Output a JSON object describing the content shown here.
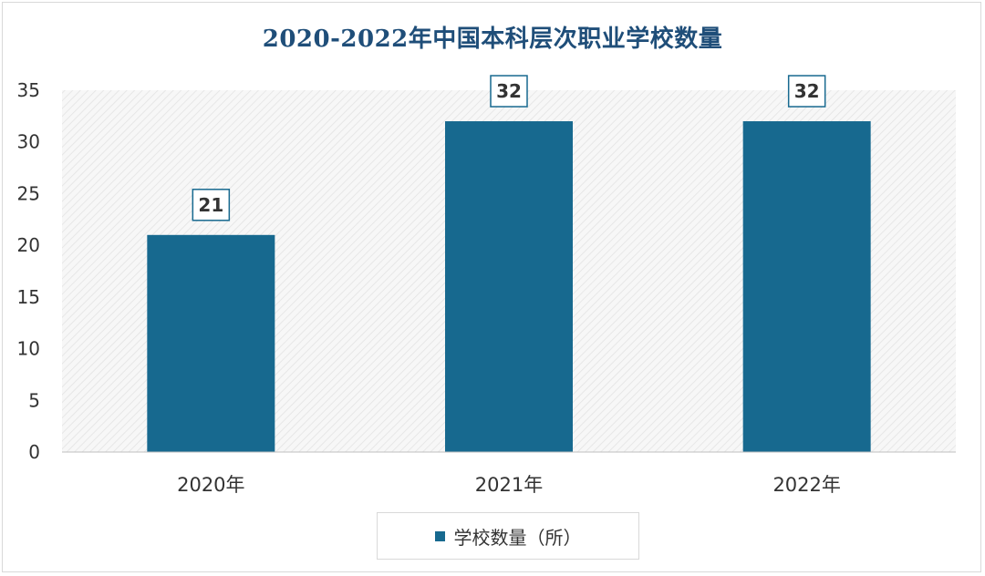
{
  "chart_data": {
    "type": "bar",
    "title": "2020-2022年中国本科层次职业学校数量",
    "categories": [
      "2020年",
      "2021年",
      "2022年"
    ],
    "series": [
      {
        "name": "学校数量（所）",
        "values": [
          21,
          32,
          32
        ],
        "color": "#17698f"
      }
    ],
    "ylim": [
      0,
      35
    ],
    "yticks": [
      0,
      5,
      10,
      15,
      20,
      25,
      30,
      35
    ],
    "data_labels": [
      "21",
      "32",
      "32"
    ],
    "legend_position": "bottom",
    "grid": false,
    "title_color": "#1f4e79"
  }
}
